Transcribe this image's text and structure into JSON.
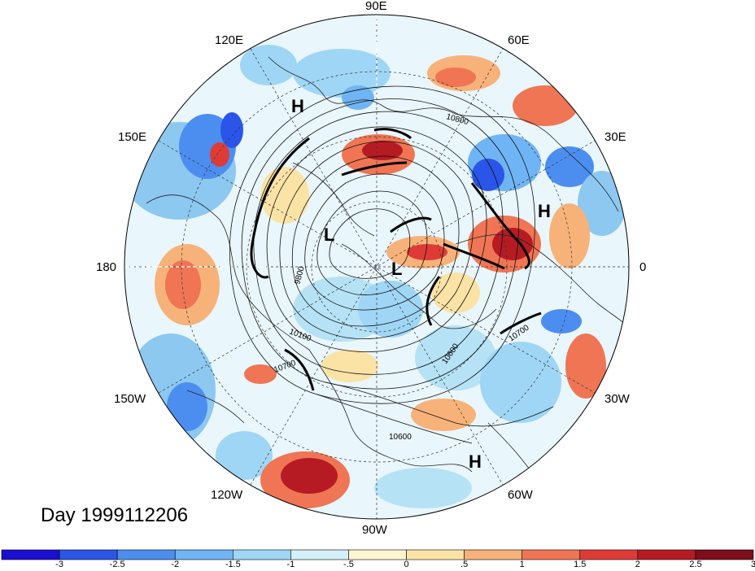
{
  "map": {
    "longitude_labels": {
      "lon_90e": "90E",
      "lon_60e": "60E",
      "lon_120e": "120E",
      "lon_30e": "30E",
      "lon_150e": "150E",
      "lon_0": "0",
      "lon_180": "180",
      "lon_30w": "30W",
      "lon_150w": "150W",
      "lon_60w": "60W",
      "lon_120w": "120W",
      "lon_90w": "90W"
    },
    "pressure_centers": [
      "H",
      "H",
      "L",
      "L",
      "H"
    ],
    "contour_labels": [
      "10800",
      "9800",
      "10100",
      "10700",
      "10600",
      "10700",
      "10600"
    ],
    "date_label": "Day 1999112206"
  },
  "colorbar": {
    "colors": [
      "#1a0fd0",
      "#2a55e8",
      "#4c8ef0",
      "#6fb4f4",
      "#9fd6f6",
      "#d3f0f8",
      "#fdf6d0",
      "#fbe3a6",
      "#f7b27a",
      "#ef7554",
      "#de3b37",
      "#b61b24",
      "#7f0d1c"
    ],
    "ticks": [
      "-3",
      "-2.5",
      "-2",
      "-1.5",
      "-1",
      "-.5",
      "0",
      ".5",
      "1",
      "1.5",
      "2",
      "2.5",
      "3"
    ]
  }
}
